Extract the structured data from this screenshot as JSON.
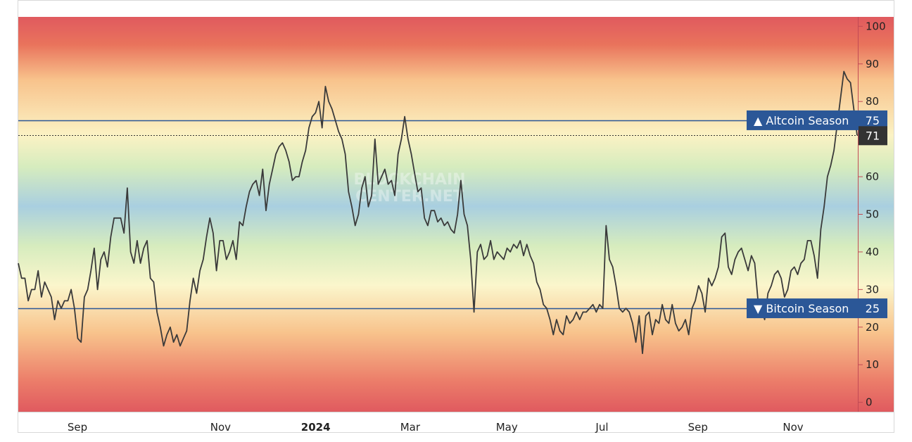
{
  "watermark": [
    "BLOCKCHAIN",
    "CENTER.NET"
  ],
  "chart_data": {
    "type": "line",
    "title": "",
    "xlabel": "",
    "ylabel": "",
    "ylim": [
      -2.5,
      102.5
    ],
    "yticks": [
      0,
      10,
      20,
      30,
      40,
      50,
      60,
      70,
      80,
      90,
      100
    ],
    "x_ticks": [
      {
        "label": "Sep",
        "pos": 0.0,
        "bold": false
      },
      {
        "label": "Nov",
        "pos": 0.2,
        "bold": false
      },
      {
        "label": "2024",
        "pos": 0.333,
        "bold": true
      },
      {
        "label": "Mar",
        "pos": 0.465,
        "bold": false
      },
      {
        "label": "May",
        "pos": 0.6,
        "bold": false
      },
      {
        "label": "Jul",
        "pos": 0.733,
        "bold": false
      },
      {
        "label": "Sep",
        "pos": 0.867,
        "bold": false
      },
      {
        "label": "Nov",
        "pos": 1.0,
        "bold": false
      }
    ],
    "reference_lines": [
      {
        "label": "▲ Altcoin Season",
        "value": 75,
        "color": "#2b5797"
      },
      {
        "label": "▼ Bitcoin Season",
        "value": 25,
        "color": "#2b5797"
      }
    ],
    "current_value": 71,
    "colors": {
      "line": "#3a3a3a",
      "label_bg": "#2b5797",
      "current_bg": "#333333",
      "high": "#e05a5f",
      "mid": "#a9cfe0"
    },
    "series": [
      {
        "values": [
          37,
          33,
          33,
          27,
          30,
          30,
          35,
          28,
          32,
          30,
          28,
          22,
          27,
          25,
          27,
          27,
          30,
          25,
          17,
          16,
          28,
          30,
          35,
          41,
          30,
          38,
          40,
          36,
          44,
          49,
          49,
          49,
          45,
          57,
          40,
          37,
          43,
          37,
          41,
          43,
          33,
          32,
          24,
          20,
          15,
          18,
          20,
          16,
          18,
          15,
          17,
          19,
          27,
          33,
          29,
          35,
          38,
          44,
          49,
          45,
          35,
          43,
          43,
          38,
          40,
          43,
          38,
          48,
          47,
          52,
          56,
          58,
          59,
          55,
          62,
          51,
          58,
          62,
          66,
          68,
          69,
          67,
          64,
          59,
          60,
          60,
          64,
          67,
          73,
          76,
          77,
          80,
          73,
          84,
          80,
          78,
          75,
          72,
          70,
          66,
          56,
          52,
          47,
          50,
          57,
          60,
          52,
          55,
          70,
          58,
          60,
          62,
          58,
          59,
          55,
          66,
          70,
          76,
          70,
          66,
          61,
          56,
          57,
          49,
          47,
          51,
          51,
          48,
          49,
          47,
          48,
          46,
          45,
          50,
          59,
          50,
          47,
          38,
          24,
          40,
          42,
          38,
          39,
          43,
          38,
          40,
          39,
          38,
          41,
          40,
          42,
          41,
          43,
          39,
          42,
          39,
          37,
          32,
          30,
          26,
          25,
          22,
          18,
          22,
          19,
          18,
          23,
          21,
          22,
          24,
          22,
          24,
          24,
          25,
          26,
          24,
          26,
          25,
          47,
          38,
          36,
          31,
          25,
          24,
          25,
          24,
          21,
          16,
          23,
          13,
          23,
          24,
          18,
          22,
          21,
          26,
          22,
          21,
          26,
          21,
          19,
          20,
          22,
          18,
          25,
          27,
          31,
          29,
          24,
          33,
          31,
          33,
          36,
          44,
          45,
          36,
          34,
          38,
          40,
          41,
          38,
          35,
          39,
          37,
          27,
          25,
          22,
          29,
          31,
          34,
          35,
          33,
          28,
          30,
          35,
          36,
          34,
          37,
          38,
          43,
          43,
          39,
          33,
          46,
          52,
          60,
          63,
          67,
          74,
          81,
          88,
          86,
          85,
          78,
          71
        ]
      }
    ]
  }
}
